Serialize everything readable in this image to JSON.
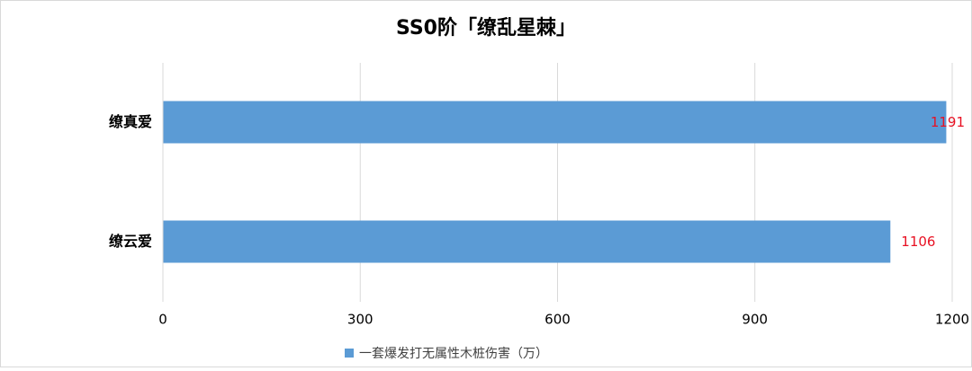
{
  "chart_data": {
    "type": "barh",
    "title": "SS0阶「缭乱星棘」",
    "categories": [
      "缭真爱",
      "缭云爱"
    ],
    "series": [
      {
        "name": "一套爆发打无属性木桩伤害（万）",
        "color": "#5b9bd5",
        "values": [
          1191,
          1106
        ]
      }
    ],
    "xlim": [
      0,
      1200
    ],
    "xticks": [
      0,
      300,
      600,
      900,
      1200
    ],
    "grid": true,
    "legend": "bottom",
    "value_label_color": "#e81123"
  }
}
